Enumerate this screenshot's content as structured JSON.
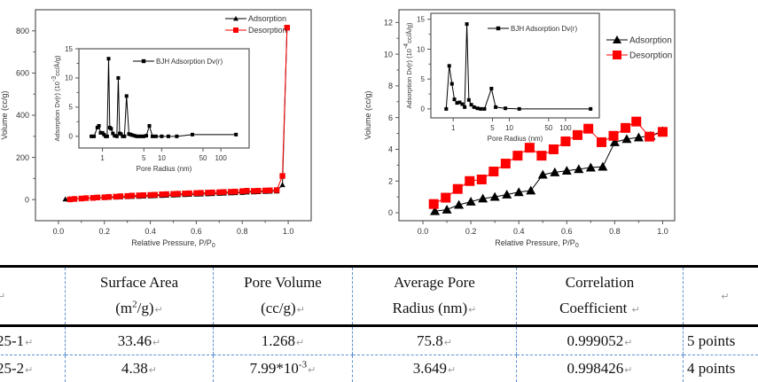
{
  "chart_data": [
    {
      "type": "line",
      "title": "",
      "xlabel": "Relative Pressure, P/P0",
      "ylabel": "Volume (cc/g)",
      "xlim": [
        -0.1,
        1.1
      ],
      "ylim": [
        -100,
        900
      ],
      "xticks": [
        "0.0",
        "0.2",
        "0.4",
        "0.6",
        "0.8",
        "1.0"
      ],
      "xtick_values": [
        0,
        0.2,
        0.4,
        0.6,
        0.8,
        1.0
      ],
      "yticks": [
        "0",
        "200",
        "400",
        "600",
        "800"
      ],
      "ytick_values": [
        0,
        200,
        400,
        600,
        800
      ],
      "grid": false,
      "legend_position": "top-right",
      "series": [
        {
          "name": "Adsorption",
          "color": "#000000",
          "marker": "triangle",
          "x": [
            0.03,
            0.05,
            0.07,
            0.1,
            0.12,
            0.15,
            0.17,
            0.2,
            0.22,
            0.25,
            0.27,
            0.3,
            0.32,
            0.35,
            0.37,
            0.4,
            0.42,
            0.45,
            0.47,
            0.5,
            0.52,
            0.55,
            0.57,
            0.6,
            0.62,
            0.65,
            0.67,
            0.7,
            0.72,
            0.75,
            0.77,
            0.8,
            0.82,
            0.85,
            0.87,
            0.9,
            0.92,
            0.95,
            0.975,
            0.995
          ],
          "y": [
            2,
            3,
            4,
            5,
            6,
            7,
            8,
            9,
            10,
            11,
            12,
            13,
            14,
            15,
            16,
            17,
            18,
            19,
            20,
            21,
            22,
            23,
            24,
            25,
            26,
            27,
            28,
            29,
            30,
            31,
            32,
            33,
            35,
            36,
            37,
            38,
            39,
            40,
            70,
            815
          ]
        },
        {
          "name": "Desorption",
          "color": "#ff0000",
          "marker": "square",
          "x": [
            0.05,
            0.07,
            0.1,
            0.12,
            0.15,
            0.17,
            0.2,
            0.22,
            0.25,
            0.27,
            0.3,
            0.32,
            0.35,
            0.37,
            0.4,
            0.42,
            0.45,
            0.47,
            0.5,
            0.52,
            0.55,
            0.57,
            0.6,
            0.62,
            0.65,
            0.67,
            0.7,
            0.72,
            0.75,
            0.77,
            0.8,
            0.82,
            0.85,
            0.87,
            0.9,
            0.92,
            0.95,
            0.975,
            0.995
          ],
          "y": [
            1,
            3,
            5,
            7,
            8,
            10,
            11,
            13,
            14,
            16,
            17,
            19,
            20,
            21,
            22,
            23,
            25,
            26,
            27,
            28,
            29,
            30,
            31,
            32,
            33,
            34,
            35,
            36,
            37,
            38,
            40,
            42,
            41,
            42,
            43,
            44,
            45,
            112,
            815
          ]
        }
      ],
      "inset": {
        "type": "line",
        "xlabel": "Pore Radius (nm)",
        "ylabel": "Adsorption Dv(r) (10^-3cc/Å/g)",
        "xscale": "log",
        "xlim": [
          0.4,
          300
        ],
        "ylim": [
          -2,
          15
        ],
        "xticks": [
          "1",
          "5",
          "10",
          "50",
          "100"
        ],
        "xtick_values": [
          1,
          5,
          10,
          50,
          100
        ],
        "yticks": [
          "0",
          "5",
          "10",
          "15"
        ],
        "ytick_values": [
          0,
          5,
          10,
          15
        ],
        "legend_position": "top-right",
        "series": [
          {
            "name": "BJH Adsorption Dv(r)",
            "color": "#000000",
            "marker": "square",
            "x": [
              0.65,
              0.72,
              0.82,
              0.87,
              0.93,
              1.0,
              1.06,
              1.13,
              1.2,
              1.27,
              1.33,
              1.4,
              1.5,
              1.6,
              1.75,
              1.85,
              1.95,
              2.05,
              2.2,
              2.35,
              2.55,
              2.8,
              3.0,
              3.2,
              3.5,
              3.8,
              4.2,
              4.6,
              5.0,
              5.5,
              6.2,
              7.0,
              8.0,
              10.0,
              13.0,
              18.0,
              33.0,
              180.0
            ],
            "y": [
              0,
              0,
              1.5,
              1.8,
              0.6,
              0.6,
              0.3,
              0,
              0,
              13.3,
              1.5,
              1.3,
              0.5,
              0.1,
              0,
              10.0,
              0.5,
              0.4,
              0,
              0,
              6.9,
              0.4,
              0.3,
              0.2,
              0.1,
              0,
              0,
              0,
              0,
              0.1,
              1.8,
              0,
              0,
              0,
              0,
              0,
              0.3,
              0.3
            ]
          }
        ]
      }
    },
    {
      "type": "line",
      "title": "",
      "xlabel": "Relative Pressure, P/P0",
      "ylabel": "Volume (cc/g)",
      "xlim": [
        -0.1,
        1.05
      ],
      "ylim": [
        -0.5,
        12.8
      ],
      "xticks": [
        "0.0",
        "0.2",
        "0.4",
        "0.6",
        "0.8",
        "1.0"
      ],
      "xtick_values": [
        0,
        0.2,
        0.4,
        0.6,
        0.8,
        1.0
      ],
      "yticks": [
        "0",
        "2",
        "4",
        "6",
        "8",
        "10",
        "12"
      ],
      "ytick_values": [
        0,
        2,
        4,
        6,
        8,
        10,
        12
      ],
      "grid": false,
      "legend_position": "right",
      "series": [
        {
          "name": "Adsorption",
          "color": "#000000",
          "marker": "triangle",
          "x": [
            0.05,
            0.1,
            0.15,
            0.2,
            0.25,
            0.3,
            0.35,
            0.4,
            0.45,
            0.5,
            0.55,
            0.6,
            0.65,
            0.7,
            0.75,
            0.8,
            0.85,
            0.9,
            0.95,
            1.0
          ],
          "y": [
            0.1,
            0.2,
            0.5,
            0.7,
            0.9,
            1.0,
            1.15,
            1.3,
            1.4,
            2.4,
            2.55,
            2.65,
            2.75,
            2.85,
            2.9,
            4.45,
            4.65,
            4.75,
            4.85,
            5.15
          ]
        },
        {
          "name": "Desorption",
          "color": "#ff0000",
          "marker": "square",
          "x": [
            0.045,
            0.095,
            0.145,
            0.195,
            0.245,
            0.295,
            0.345,
            0.395,
            0.445,
            0.495,
            0.545,
            0.595,
            0.645,
            0.69,
            0.745,
            0.795,
            0.845,
            0.89,
            0.945,
            1.0
          ],
          "y": [
            0.55,
            0.95,
            1.5,
            2.0,
            2.1,
            2.6,
            3.1,
            3.6,
            4.1,
            3.6,
            4.0,
            4.5,
            4.9,
            5.3,
            4.45,
            4.85,
            5.35,
            5.75,
            4.8,
            5.1
          ]
        }
      ],
      "inset": {
        "type": "line",
        "xlabel": "Pore Radius (nm)",
        "ylabel": "Adsorption Dv(r) (10^-4cc/Å/g)",
        "xscale": "log",
        "xlim": [
          0.4,
          400
        ],
        "ylim": [
          -1.5,
          16
        ],
        "xticks": [
          "1",
          "5",
          "10",
          "50",
          "100"
        ],
        "xtick_values": [
          1,
          5,
          10,
          50,
          100
        ],
        "yticks": [
          "0",
          "5",
          "10",
          "15"
        ],
        "ytick_values": [
          0,
          5,
          10,
          15
        ],
        "legend_position": "top-right",
        "series": [
          {
            "name": "BJH Adsorption Dv(r)",
            "color": "#000000",
            "marker": "square",
            "x": [
              0.75,
              0.85,
              0.95,
              1.05,
              1.17,
              1.3,
              1.45,
              1.6,
              1.75,
              1.9,
              2.1,
              2.35,
              2.7,
              3.1,
              3.6,
              4.8,
              5.7,
              8.5,
              15.0,
              280.0
            ],
            "y": [
              0,
              7.2,
              4.2,
              1.6,
              1.0,
              1.1,
              0.8,
              0.3,
              14.2,
              1.5,
              0.7,
              0.3,
              0.1,
              0.0,
              0.0,
              3.4,
              0.3,
              0.1,
              0.0,
              0.0
            ]
          }
        ]
      }
    }
  ],
  "table": {
    "headers": [
      {
        "line1": "",
        "line2": ""
      },
      {
        "line1": "Surface Area",
        "line2_pre": "(m",
        "line2_sup": "2",
        "line2_post": "/g)"
      },
      {
        "line1": "Pore Volume",
        "line2": "(cc/g)"
      },
      {
        "line1": "Average Pore",
        "line2": "Radius (nm)"
      },
      {
        "line1": "Correlation",
        "line2": "Coefficient "
      },
      {
        "line1": "",
        "line2": ""
      }
    ],
    "rows": [
      {
        "sample": "25-1",
        "surface_area": "33.46",
        "pore_volume": "1.268",
        "pore_volume_sup": "",
        "avg_pore_radius": "75.8",
        "correlation": "0.999052",
        "points": "5 points"
      },
      {
        "sample": "25-2",
        "surface_area": "4.38",
        "pore_volume": "7.99*10",
        "pore_volume_sup": "-3",
        "avg_pore_radius": "3.649",
        "correlation": "0.998426",
        "points": "4 points"
      }
    ],
    "return_mark": "↵"
  }
}
